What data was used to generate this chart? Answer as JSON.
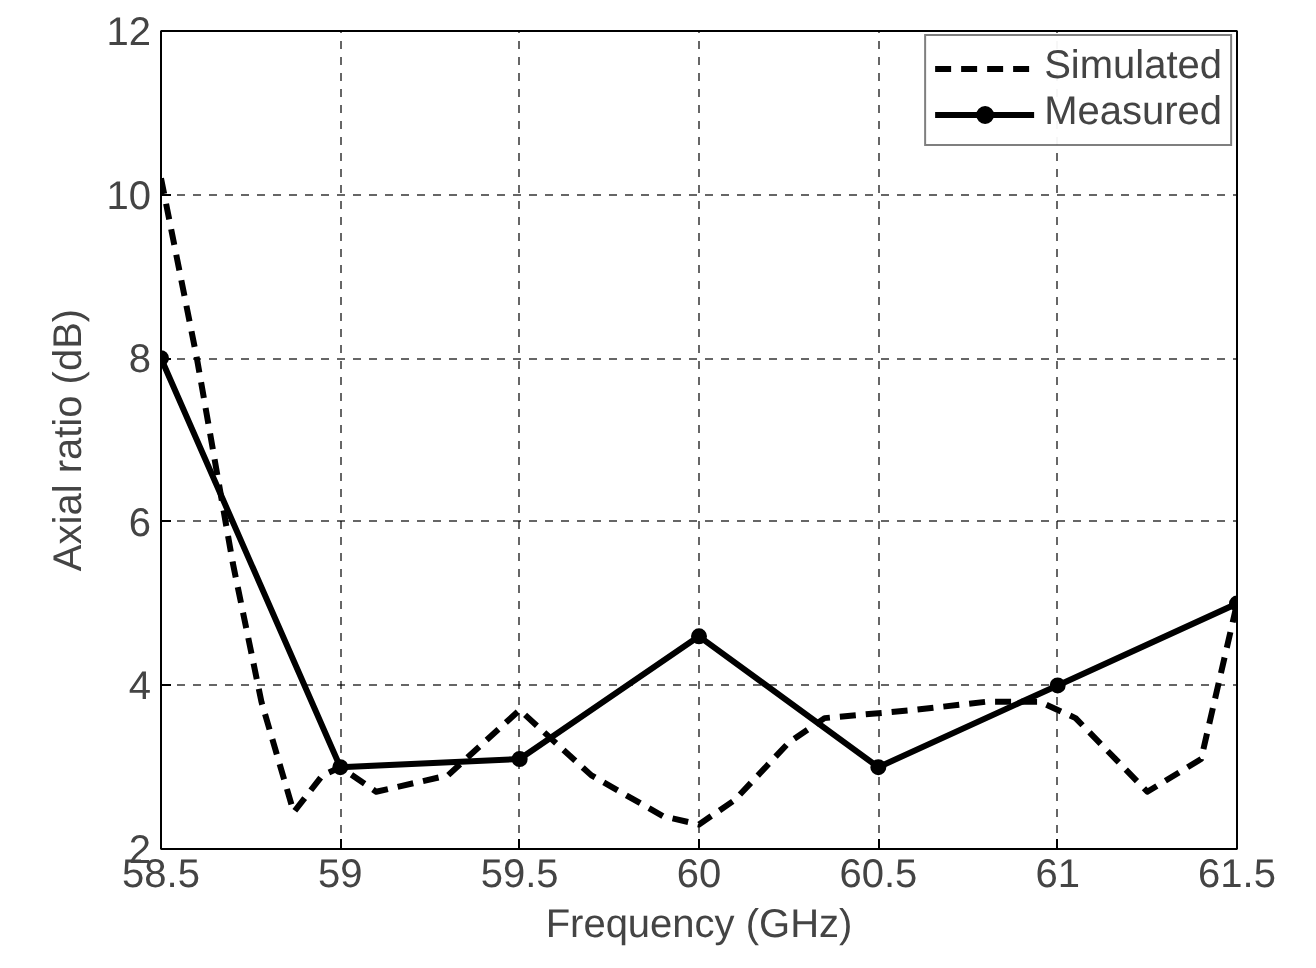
{
  "chart_data": {
    "type": "line",
    "xlabel": "Frequency (GHz)",
    "ylabel": "Axial ratio (dB)",
    "xlim": [
      58.5,
      61.5
    ],
    "ylim": [
      2,
      12
    ],
    "xticks": [
      58.5,
      59,
      59.5,
      60,
      60.5,
      61,
      61.5
    ],
    "yticks": [
      2,
      4,
      6,
      8,
      10,
      12
    ],
    "grid": true,
    "legend": "top right",
    "series": [
      {
        "name": "Simulated",
        "color": "#000000",
        "line_style": "dashed",
        "marker": "none",
        "x": [
          58.5,
          58.6,
          58.7,
          58.78,
          58.87,
          58.95,
          59.0,
          59.1,
          59.3,
          59.5,
          59.7,
          59.9,
          60.0,
          60.1,
          60.25,
          60.35,
          60.6,
          60.8,
          60.95,
          61.05,
          61.25,
          61.4,
          61.5
        ],
        "values": [
          10.2,
          8.0,
          5.5,
          3.8,
          2.45,
          2.9,
          3.0,
          2.7,
          2.9,
          3.7,
          2.9,
          2.4,
          2.3,
          2.6,
          3.3,
          3.6,
          3.7,
          3.8,
          3.8,
          3.6,
          2.7,
          3.1,
          5.0
        ]
      },
      {
        "name": "Measured",
        "color": "#000000",
        "line_style": "solid",
        "marker": "circle",
        "x": [
          58.5,
          59,
          59.5,
          60,
          60.5,
          61,
          61.5
        ],
        "values": [
          8.0,
          3.0,
          3.1,
          4.6,
          3.0,
          4.0,
          5.0
        ]
      }
    ]
  }
}
